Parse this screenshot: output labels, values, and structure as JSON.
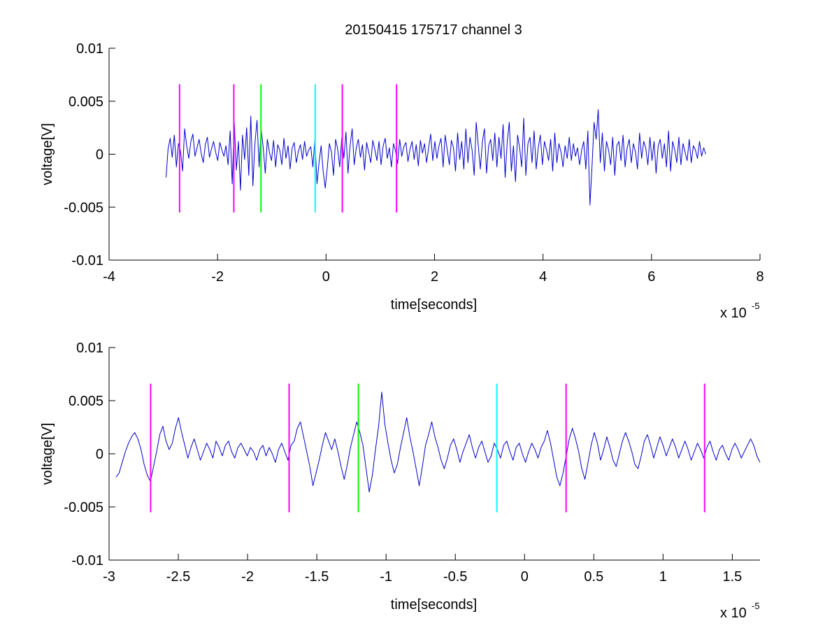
{
  "figure": {
    "title": "20150415 175717 channel 3"
  },
  "colors": {
    "signal": "#0000cc",
    "magenta": "#ff00ff",
    "green": "#00ff00",
    "cyan": "#00ffff"
  },
  "chart_data": [
    {
      "type": "line",
      "title": "20150415 175717 channel 3",
      "xlabel": "time[seconds]",
      "ylabel": "voltage[V]",
      "x_multiplier_label": "x 10",
      "x_multiplier_exp": "-5",
      "xlim": [
        -4,
        8
      ],
      "ylim": [
        -0.01,
        0.01
      ],
      "xticks": [
        -4,
        -2,
        0,
        2,
        4,
        6,
        8
      ],
      "xtick_labels": [
        "-4",
        "-2",
        "0",
        "2",
        "4",
        "6",
        "8"
      ],
      "yticks": [
        -0.01,
        -0.005,
        0,
        0.005,
        0.01
      ],
      "ytick_labels": [
        "-0.01",
        "-0.005",
        "0",
        "0.005",
        "0.01"
      ],
      "grid": false,
      "series": [
        {
          "x_range": [
            -2.95,
            7.0
          ],
          "y": [
            -0.0022,
            0.0005,
            0.0015,
            -0.0003,
            0.0018,
            -0.0012,
            0.001,
            0.0003,
            -0.0016,
            0.0024,
            0.0008,
            -0.0004,
            0.0012,
            0.0019,
            -0.0002,
            0.0006,
            0.0014,
            0.0001,
            -0.0008,
            0.0009,
            0.0016,
            -0.0003,
            0.0005,
            0.0012,
            0.0002,
            -0.0006,
            0.0011,
            0.0004,
            -0.0002,
            0.0008,
            -0.001,
            0.0022,
            -0.0028,
            0.003,
            -0.0015,
            0.0012,
            -0.0034,
            0.0018,
            -0.0005,
            0.0025,
            -0.002,
            0.0036,
            -0.003,
            0.001,
            0.0032,
            -0.0012,
            0.0024,
            0.0006,
            -0.0018,
            0.0014,
            0.0002,
            -0.0006,
            0.0013,
            -0.0012,
            0.0009,
            0.0004,
            -0.001,
            0.0015,
            -0.0004,
            0.0008,
            -0.0014,
            0.0006,
            0.0011,
            -0.0008,
            0.0003,
            0.0009,
            -0.0005,
            0.0012,
            -0.0002,
            0.0004,
            0.0007,
            -0.0012,
            0.0014,
            -0.0028,
            -0.0008,
            0.0008,
            -0.0016,
            -0.0032,
            -0.0012,
            0.001,
            0.0002,
            -0.002,
            0.0014,
            0.0005,
            -0.0012,
            0.0016,
            -0.0004,
            0.0021,
            -0.0018,
            0.0008,
            0.0024,
            -0.001,
            0.0006,
            0.0014,
            -0.0003,
            0.0009,
            -0.0015,
            0.0011,
            0.0002,
            -0.0008,
            0.0013,
            0.0004,
            -0.0006,
            0.0012,
            -0.001,
            0.0008,
            0.0015,
            -0.0004,
            0.0006,
            -0.0012,
            0.001,
            0.0003,
            -0.0009,
            0.0014,
            -0.0002,
            0.0007,
            0.0011,
            -0.0007,
            0.0005,
            0.0012,
            -0.0005,
            0.0009,
            -0.0011,
            0.0013,
            0.0001,
            0.001,
            -0.0008,
            0.0006,
            0.0019,
            -0.0006,
            0.0012,
            -0.0004,
            0.0008,
            0.0015,
            -0.0012,
            0.0018,
            0.0004,
            -0.001,
            0.0013,
            0.0006,
            -0.0016,
            0.002,
            -0.0005,
            0.0012,
            -0.0014,
            0.0024,
            -0.0008,
            0.0016,
            0.0004,
            -0.002,
            0.003,
            0.0008,
            -0.0014,
            0.0012,
            0.0024,
            -0.0018,
            0.0008,
            0.0014,
            -0.0006,
            0.002,
            -0.0012,
            0.0016,
            -0.0004,
            0.0028,
            -0.0022,
            0.0012,
            0.003,
            -0.0016,
            0.0008,
            -0.0026,
            0.0018,
            0.0006,
            -0.0012,
            0.0034,
            -0.002,
            0.001,
            0.0016,
            -0.0008,
            0.0022,
            -0.0014,
            0.0006,
            0.0018,
            -0.001,
            0.0012,
            0.0004,
            -0.0006,
            0.0014,
            -0.0016,
            0.002,
            -0.0008,
            0.001,
            0.0002,
            -0.0012,
            0.0008,
            -0.0004,
            0.0016,
            -0.0006,
            0.001,
            -0.0002,
            0.0006,
            -0.001,
            0.0004,
            0.0012,
            -0.0014,
            0.0022,
            -0.0048,
            -0.0012,
            0.003,
            0.0014,
            0.0042,
            -0.0008,
            0.002,
            -0.0016,
            0.0012,
            0.0004,
            -0.001,
            0.0016,
            -0.002,
            0.0008,
            0.0012,
            -0.0006,
            0.0018,
            -0.0012,
            0.0006,
            0.0014,
            -0.0008,
            0.001,
            0.0002,
            -0.0014,
            0.002,
            -0.0004,
            0.0012,
            0.0006,
            -0.001,
            0.0016,
            -0.0006,
            0.0012,
            -0.0018,
            0.0008,
            0.0014,
            -0.0004,
            0.001,
            -0.0012,
            0.0022,
            -0.0016,
            0.0012,
            0.0004,
            -0.0008,
            0.0016,
            -0.001,
            0.001,
            0.0002,
            -0.0006,
            0.0014,
            -0.0008,
            0.0008,
            0.0004,
            -0.0004,
            0.0012,
            -0.0002,
            0.0006,
            0.0
          ]
        }
      ],
      "markers": [
        {
          "x": -2.7,
          "color": "magenta"
        },
        {
          "x": -1.7,
          "color": "magenta"
        },
        {
          "x": -1.2,
          "color": "green"
        },
        {
          "x": -0.2,
          "color": "cyan"
        },
        {
          "x": 0.3,
          "color": "magenta"
        },
        {
          "x": 1.3,
          "color": "magenta"
        }
      ],
      "marker_span": [
        -0.0055,
        0.0066
      ]
    },
    {
      "type": "line",
      "title": "",
      "xlabel": "time[seconds]",
      "ylabel": "voltage[V]",
      "x_multiplier_label": "x 10",
      "x_multiplier_exp": "-5",
      "xlim": [
        -3.0,
        1.7
      ],
      "ylim": [
        -0.01,
        0.01
      ],
      "xticks": [
        -3,
        -2.5,
        -2,
        -1.5,
        -1,
        -0.5,
        0,
        0.5,
        1,
        1.5
      ],
      "xtick_labels": [
        "-3",
        "-2.5",
        "-2",
        "-1.5",
        "-1",
        "-0.5",
        "0",
        "0.5",
        "1",
        "1.5"
      ],
      "yticks": [
        -0.01,
        -0.005,
        0,
        0.005,
        0.01
      ],
      "ytick_labels": [
        "-0.01",
        "-0.005",
        "0",
        "0.005",
        "0.01"
      ],
      "grid": false,
      "series": [
        {
          "x_range": [
            -2.95,
            1.7
          ],
          "y": [
            -0.0022,
            -0.0018,
            -0.0008,
            0.0002,
            0.001,
            0.0016,
            0.002,
            0.0014,
            0.0004,
            -0.001,
            -0.002,
            -0.0026,
            -0.0012,
            0.0002,
            0.0018,
            0.0026,
            0.0012,
            0.0004,
            0.001,
            0.0024,
            0.0034,
            0.002,
            0.0008,
            -0.0004,
            0.0006,
            0.0014,
            0.0004,
            -0.0006,
            0.0002,
            0.001,
            0.0004,
            -0.0004,
            0.0012,
            0.0006,
            -0.0002,
            0.0008,
            0.0012,
            0.0002,
            -0.0004,
            0.0006,
            0.001,
            0.0004,
            -0.0002,
            0.0006,
            0.0002,
            -0.0006,
            0.0004,
            0.0008,
            -0.0002,
            0.0006,
            0.0,
            -0.0008,
            0.0004,
            0.001,
            0.0002,
            -0.0006,
            0.0008,
            0.0012,
            0.0024,
            0.003,
            0.0016,
            0.0002,
            -0.0012,
            -0.003,
            -0.0018,
            -0.0006,
            0.0008,
            0.002,
            0.0012,
            0.0004,
            0.0014,
            0.0002,
            -0.0012,
            -0.0024,
            -0.001,
            0.0006,
            0.0018,
            0.003,
            0.002,
            0.0008,
            -0.0014,
            -0.0036,
            -0.002,
            0.0004,
            0.0026,
            0.0058,
            0.0028,
            0.001,
            -0.0006,
            -0.0018,
            -0.001,
            0.0006,
            0.002,
            0.0034,
            0.0016,
            0.0002,
            -0.0014,
            -0.003,
            -0.0012,
            0.0008,
            0.0018,
            0.003,
            0.0016,
            0.0006,
            -0.0006,
            -0.0014,
            -0.0004,
            0.0008,
            0.0014,
            0.0004,
            -0.0008,
            0.0002,
            0.001,
            0.0018,
            0.0006,
            -0.0004,
            0.0006,
            0.0012,
            0.0002,
            -0.0008,
            -0.0002,
            0.001,
            0.0004,
            -0.0004,
            0.0008,
            0.0012,
            0.0002,
            -0.0006,
            0.0006,
            0.001,
            0.0,
            -0.0008,
            0.0002,
            0.001,
            0.0004,
            -0.0004,
            0.0006,
            0.0012,
            0.0022,
            0.001,
            -0.0006,
            -0.0022,
            -0.003,
            -0.0018,
            -0.0002,
            0.0014,
            0.0024,
            0.0014,
            0.0002,
            -0.0014,
            -0.0024,
            -0.0008,
            0.0008,
            0.002,
            0.001,
            -0.0006,
            0.0004,
            0.0016,
            0.0006,
            -0.0006,
            -0.0012,
            0.0,
            0.0012,
            0.002,
            0.0012,
            0.0002,
            -0.001,
            -0.0014,
            -0.0002,
            0.0012,
            0.0018,
            0.0008,
            -0.0004,
            0.0006,
            0.0016,
            0.0008,
            -0.0002,
            0.0006,
            0.0014,
            0.0006,
            -0.0004,
            0.0004,
            0.0012,
            0.0004,
            -0.0006,
            0.0002,
            0.001,
            0.0004,
            -0.0004,
            0.0006,
            0.0012,
            0.0002,
            -0.0006,
            0.0004,
            0.0008,
            0.0,
            -0.0006,
            0.0004,
            0.001,
            0.0004,
            -0.0004,
            0.0002,
            0.0008,
            0.0014,
            0.0008,
            -0.0002,
            -0.0008
          ]
        }
      ],
      "markers": [
        {
          "x": -2.7,
          "color": "magenta"
        },
        {
          "x": -1.7,
          "color": "magenta"
        },
        {
          "x": -1.2,
          "color": "green"
        },
        {
          "x": -0.2,
          "color": "cyan"
        },
        {
          "x": 0.3,
          "color": "magenta"
        },
        {
          "x": 1.3,
          "color": "magenta"
        }
      ],
      "marker_span": [
        -0.0055,
        0.0066
      ]
    }
  ]
}
